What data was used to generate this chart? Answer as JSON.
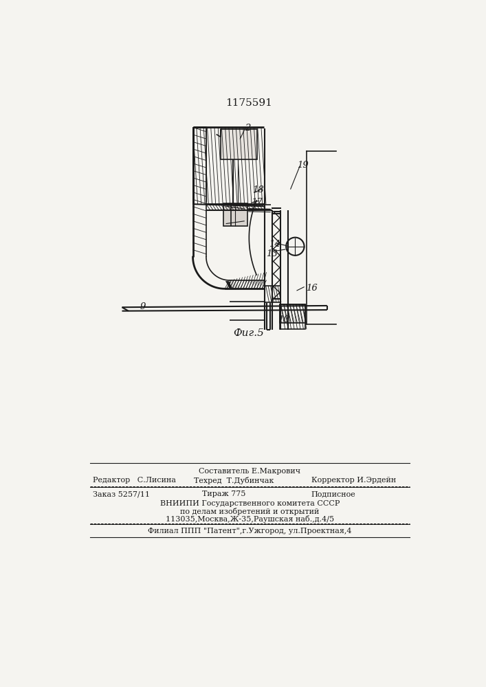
{
  "patent_number": "1175591",
  "figure_label": "Фиг.5",
  "bg_color": "#f5f4f0",
  "lc": "#1a1a1a",
  "footer_sestavitel": "Составитель Е.Макрович",
  "footer_redaktor": "Редактор   С.Лисина",
  "footer_tehred": "Техред  Т.Дубинчак",
  "footer_korrektor": "Корректор И.Эрдейн",
  "footer_zakaz": "Заказ 5257/11",
  "footer_tirazh": "Тираж 775",
  "footer_podpisnoe": "Подписное",
  "footer_vniip1": "ВНИИПИ Государственного комитета СССР",
  "footer_vniip2": "по делам изобретений и открытий",
  "footer_vniip3": "113035,Москва,Ж-35,Раушская наб.,д.4/5",
  "footer_filial": "Филиал ППП \"Патент\",г.Ужгород, ул.Проектная,4"
}
